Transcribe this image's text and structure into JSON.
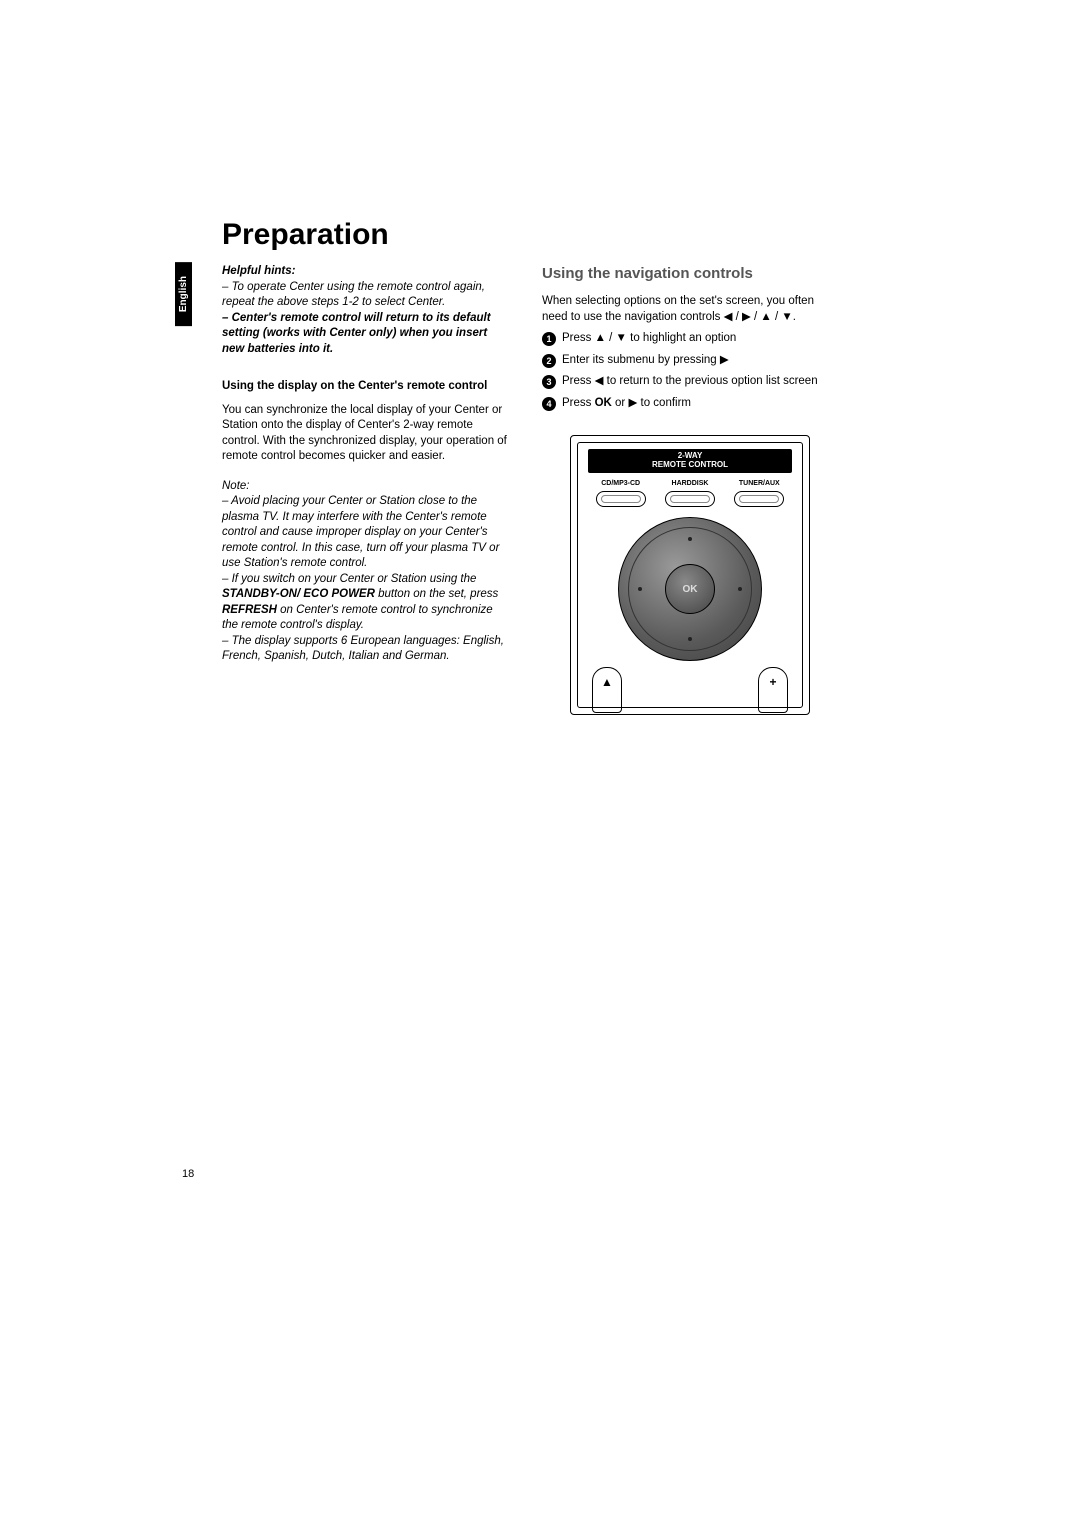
{
  "title": "Preparation",
  "language_tab": "English",
  "page_number": "18",
  "left": {
    "helpful_hints_label": "Helpful hints:",
    "hint1": "–  To operate Center using the remote control again, repeat the above steps 1-2 to select Center.",
    "hint2": "–  Center's remote control will return to its default setting (works with Center only) when you insert new batteries into it.",
    "subheading": "Using the display on the Center's remote control",
    "sync_text": "You can synchronize the local display of your Center or Station onto the display of Center's 2-way remote control. With the synchronized display, your operation of remote control becomes quicker and easier.",
    "note_label": "Note:",
    "note1": "–  Avoid placing your Center or Station close to the plasma TV.  It may interfere with the Center's remote control and cause improper display on your Center's remote control. In this case, turn off your plasma TV or use Station's remote control.",
    "note2_a": "–  If you switch on your Center or Station using the ",
    "note2_b": "STANDBY-ON/ ECO POWER",
    "note2_c": " button on the set,  press ",
    "note2_d": "REFRESH",
    "note2_e": " on Center's remote control to synchronize the remote control's display.",
    "note3": "–  The display supports 6 European languages: English, French, Spanish, Dutch, Italian and German."
  },
  "right": {
    "heading": "Using the navigation controls",
    "intro_a": "When selecting options on the set's screen, you often need to use the navigation controls ",
    "intro_b": "◀ / ▶ / ▲ / ▼",
    "intro_c": ".",
    "step1_a": "Press  ",
    "step1_b": "▲ / ▼",
    "step1_c": " to highlight an option",
    "step2_a": "Enter its submenu by pressing  ",
    "step2_b": "▶",
    "step3_a": "Press ",
    "step3_b": "◀",
    "step3_c": " to return to the previous option list screen",
    "step4_a": "Press ",
    "step4_b": "OK",
    "step4_c": " or ",
    "step4_d": "▶",
    "step4_e": "  to confirm"
  },
  "remote": {
    "header_line1": "2-WAY",
    "header_line2": "REMOTE CONTROL",
    "btn1": "CD/MP3-CD",
    "btn2": "HARDDISK",
    "btn3": "TUNER/AUX",
    "ok": "OK",
    "bottom_left": "▲",
    "bottom_right": "+"
  }
}
